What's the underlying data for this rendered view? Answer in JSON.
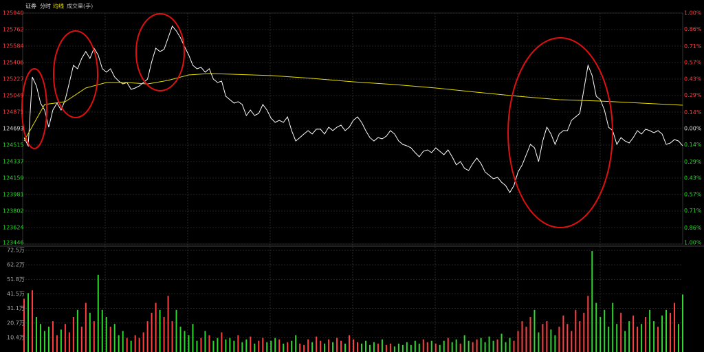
{
  "chart_data": [
    {
      "type": "line",
      "title": "证券",
      "grid": true,
      "ylim": [
        123446,
        125940
      ],
      "yticks": [
        125940,
        125762,
        125584,
        125406,
        125227,
        125049,
        124871,
        124693,
        124515,
        124337,
        124159,
        123981,
        123802,
        123624,
        123446
      ],
      "y2lim": [
        -1,
        1
      ],
      "y2ticks": [
        {
          "value": 1,
          "label": "1.00%"
        },
        {
          "value": 0.86,
          "label": "0.86%"
        },
        {
          "value": 0.71,
          "label": "0.71%"
        },
        {
          "value": 0.57,
          "label": "0.57%"
        },
        {
          "value": 0.43,
          "label": "0.43%"
        },
        {
          "value": 0.29,
          "label": "0.29%"
        },
        {
          "value": 0.14,
          "label": "0.14%"
        },
        {
          "value": 0,
          "label": "0.00%"
        },
        {
          "value": -0.14,
          "label": "0.14%"
        },
        {
          "value": -0.29,
          "label": "0.29%"
        },
        {
          "value": -0.43,
          "label": "0.43%"
        },
        {
          "value": -0.57,
          "label": "0.57%"
        },
        {
          "value": -0.71,
          "label": "0.71%"
        },
        {
          "value": -0.86,
          "label": "0.86%"
        },
        {
          "value": -1,
          "label": "1.00%"
        }
      ],
      "up_color": "#ff4040",
      "down_color": "#2ed82e",
      "flat_color": "#e0e0e0",
      "series": [
        {
          "name": "分时",
          "color": "#ffffff",
          "values": [
            124596,
            124507,
            125250,
            125153,
            124968,
            124893,
            124708,
            124893,
            124968,
            124893,
            125005,
            125190,
            125376,
            125339,
            125450,
            125524,
            125450,
            125561,
            125487,
            125339,
            125302,
            125339,
            125250,
            125205,
            125175,
            125190,
            125116,
            125131,
            125153,
            125190,
            125227,
            125413,
            125561,
            125524,
            125547,
            125673,
            125799,
            125747,
            125673,
            125576,
            125487,
            125376,
            125339,
            125354,
            125302,
            125339,
            125227,
            125190,
            125205,
            125042,
            125005,
            124968,
            124983,
            124953,
            124834,
            124893,
            124834,
            124856,
            124953,
            124893,
            124804,
            124760,
            124782,
            124760,
            124819,
            124671,
            124559,
            124596,
            124634,
            124671,
            124634,
            124686,
            124686,
            124634,
            124708,
            124671,
            124708,
            124730,
            124671,
            124708,
            124782,
            124819,
            124760,
            124671,
            124596,
            124559,
            124596,
            124582,
            124611,
            124671,
            124634,
            124559,
            124522,
            124507,
            124485,
            124433,
            124389,
            124448,
            124463,
            124433,
            124485,
            124448,
            124411,
            124463,
            124389,
            124300,
            124337,
            124263,
            124240,
            124315,
            124374,
            124315,
            124225,
            124188,
            124151,
            124166,
            124114,
            124077,
            124003,
            124077,
            124225,
            124300,
            124411,
            124522,
            124485,
            124337,
            124559,
            124708,
            124634,
            124522,
            124634,
            124671,
            124671,
            124782,
            124819,
            124856,
            125116,
            125376,
            125265,
            125042,
            125005,
            124893,
            124708,
            124671,
            124522,
            124596,
            124559,
            124537,
            124596,
            124671,
            124634,
            124686,
            124671,
            124648,
            124671,
            124634,
            124522,
            124537,
            124574,
            124559,
            124507
          ]
        },
        {
          "name": "均线",
          "color": "#e8e000",
          "x": [
            0,
            5,
            10,
            15,
            20,
            25,
            30,
            35,
            40,
            45,
            50,
            60,
            70,
            80,
            90,
            100,
            110,
            120,
            130,
            140,
            150,
            160
          ],
          "values": [
            124559,
            124953,
            124983,
            125131,
            125190,
            125190,
            125175,
            125213,
            125272,
            125287,
            125280,
            125265,
            125235,
            125198,
            125168,
            125131,
            125086,
            125042,
            125005,
            124990,
            124968,
            124945
          ]
        }
      ]
    },
    {
      "type": "bar",
      "title": "成交量(手)",
      "ylim": [
        0,
        74.5
      ],
      "yticks": [
        {
          "value": 72.5,
          "label": "72.5万"
        },
        {
          "value": 62.2,
          "label": "62.2万"
        },
        {
          "value": 51.8,
          "label": "51.8万"
        },
        {
          "value": 41.5,
          "label": "41.5万"
        },
        {
          "value": 31.1,
          "label": "31.1万"
        },
        {
          "value": 20.7,
          "label": "20.7万"
        },
        {
          "value": 10.4,
          "label": "10.4万"
        }
      ],
      "up_color": "#ff4040",
      "down_color": "#2ed82e",
      "values": [
        38,
        42,
        44,
        25,
        20,
        15,
        18,
        22,
        12,
        16,
        20,
        14,
        25,
        30,
        18,
        35,
        28,
        22,
        55,
        30,
        25,
        18,
        20,
        12,
        15,
        10,
        8,
        12,
        10,
        14,
        22,
        28,
        35,
        30,
        25,
        40,
        22,
        30,
        18,
        15,
        12,
        20,
        8,
        10,
        15,
        12,
        8,
        10,
        14,
        9,
        10,
        8,
        12,
        7,
        9,
        11,
        6,
        8,
        10,
        7,
        8,
        10,
        9,
        6,
        7,
        8,
        12,
        6,
        5,
        9,
        7,
        11,
        8,
        6,
        9,
        7,
        10,
        8,
        6,
        12,
        9,
        7,
        6,
        8,
        5,
        7,
        6,
        9,
        5,
        6,
        4,
        6,
        5,
        7,
        5,
        8,
        6,
        9,
        7,
        8,
        6,
        5,
        8,
        10,
        7,
        9,
        6,
        12,
        8,
        7,
        9,
        10,
        7,
        11,
        8,
        9,
        13,
        7,
        10,
        8,
        15,
        22,
        18,
        25,
        30,
        14,
        20,
        22,
        16,
        12,
        18,
        26,
        20,
        15,
        30,
        22,
        28,
        40,
        72,
        35,
        25,
        30,
        18,
        35,
        20,
        28,
        15,
        22,
        26,
        18,
        20,
        25,
        30,
        22,
        18,
        26,
        30,
        28,
        35,
        20,
        41
      ]
    }
  ]
}
